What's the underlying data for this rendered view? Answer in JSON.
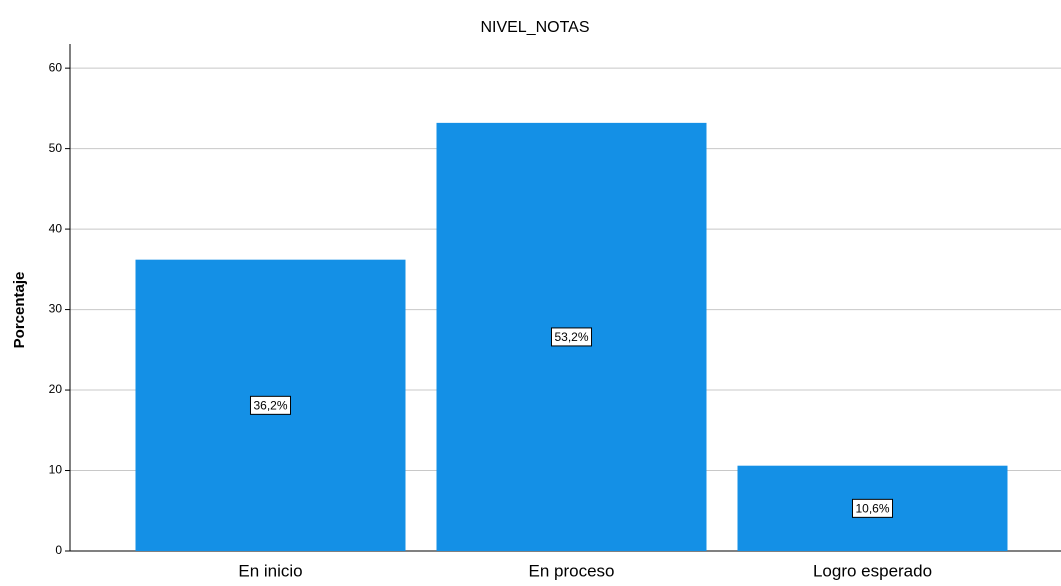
{
  "chart_data": {
    "type": "bar",
    "title": "NIVEL_NOTAS",
    "y_label": "Porcentaje",
    "categories": [
      "En inicio",
      "En proceso",
      "Logro esperado"
    ],
    "values": [
      36.2,
      53.2,
      10.6
    ],
    "value_labels": [
      "36,2%",
      "53,2%",
      "10,6%"
    ],
    "color": "#1490e6",
    "ylim": [
      0,
      63
    ],
    "yticks": [
      0,
      10,
      20,
      30,
      40,
      50,
      60
    ],
    "grid": true
  }
}
